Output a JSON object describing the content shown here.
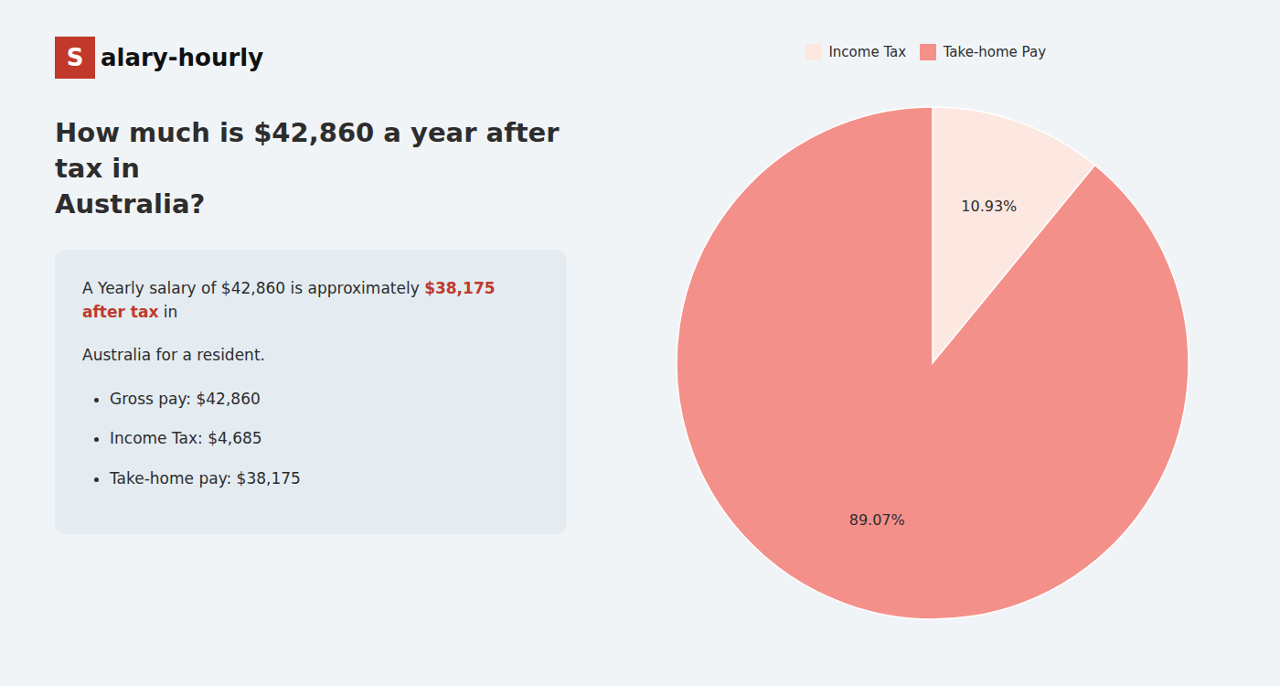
{
  "chart_data": {
    "type": "pie",
    "title": "How much is $42,860 a year after tax in\nAustralia?",
    "categories": [
      "Income Tax",
      "Take-home Pay"
    ],
    "values": [
      10.93,
      89.07
    ],
    "value_labels": [
      "10.93%",
      "89.07%"
    ],
    "colors": [
      "#fce8e0",
      "#f4908a"
    ],
    "data_labels": true,
    "legend": "top",
    "annotations": [
      {
        "text": "S",
        "color": "#c0392b"
      },
      {
        "text": "alary-hourly"
      },
      {
        "text": "A Yearly salary of $42,860 is approximately "
      },
      {
        "text": "$38,175 after tax",
        "color": "#c0392b"
      },
      {
        "text": " in"
      },
      {
        "text": "Australia for a resident."
      },
      {
        "text": "Gross pay: $42,860"
      },
      {
        "text": "Income Tax: $4,685"
      },
      {
        "text": "Take-home pay: $38,175"
      }
    ]
  }
}
